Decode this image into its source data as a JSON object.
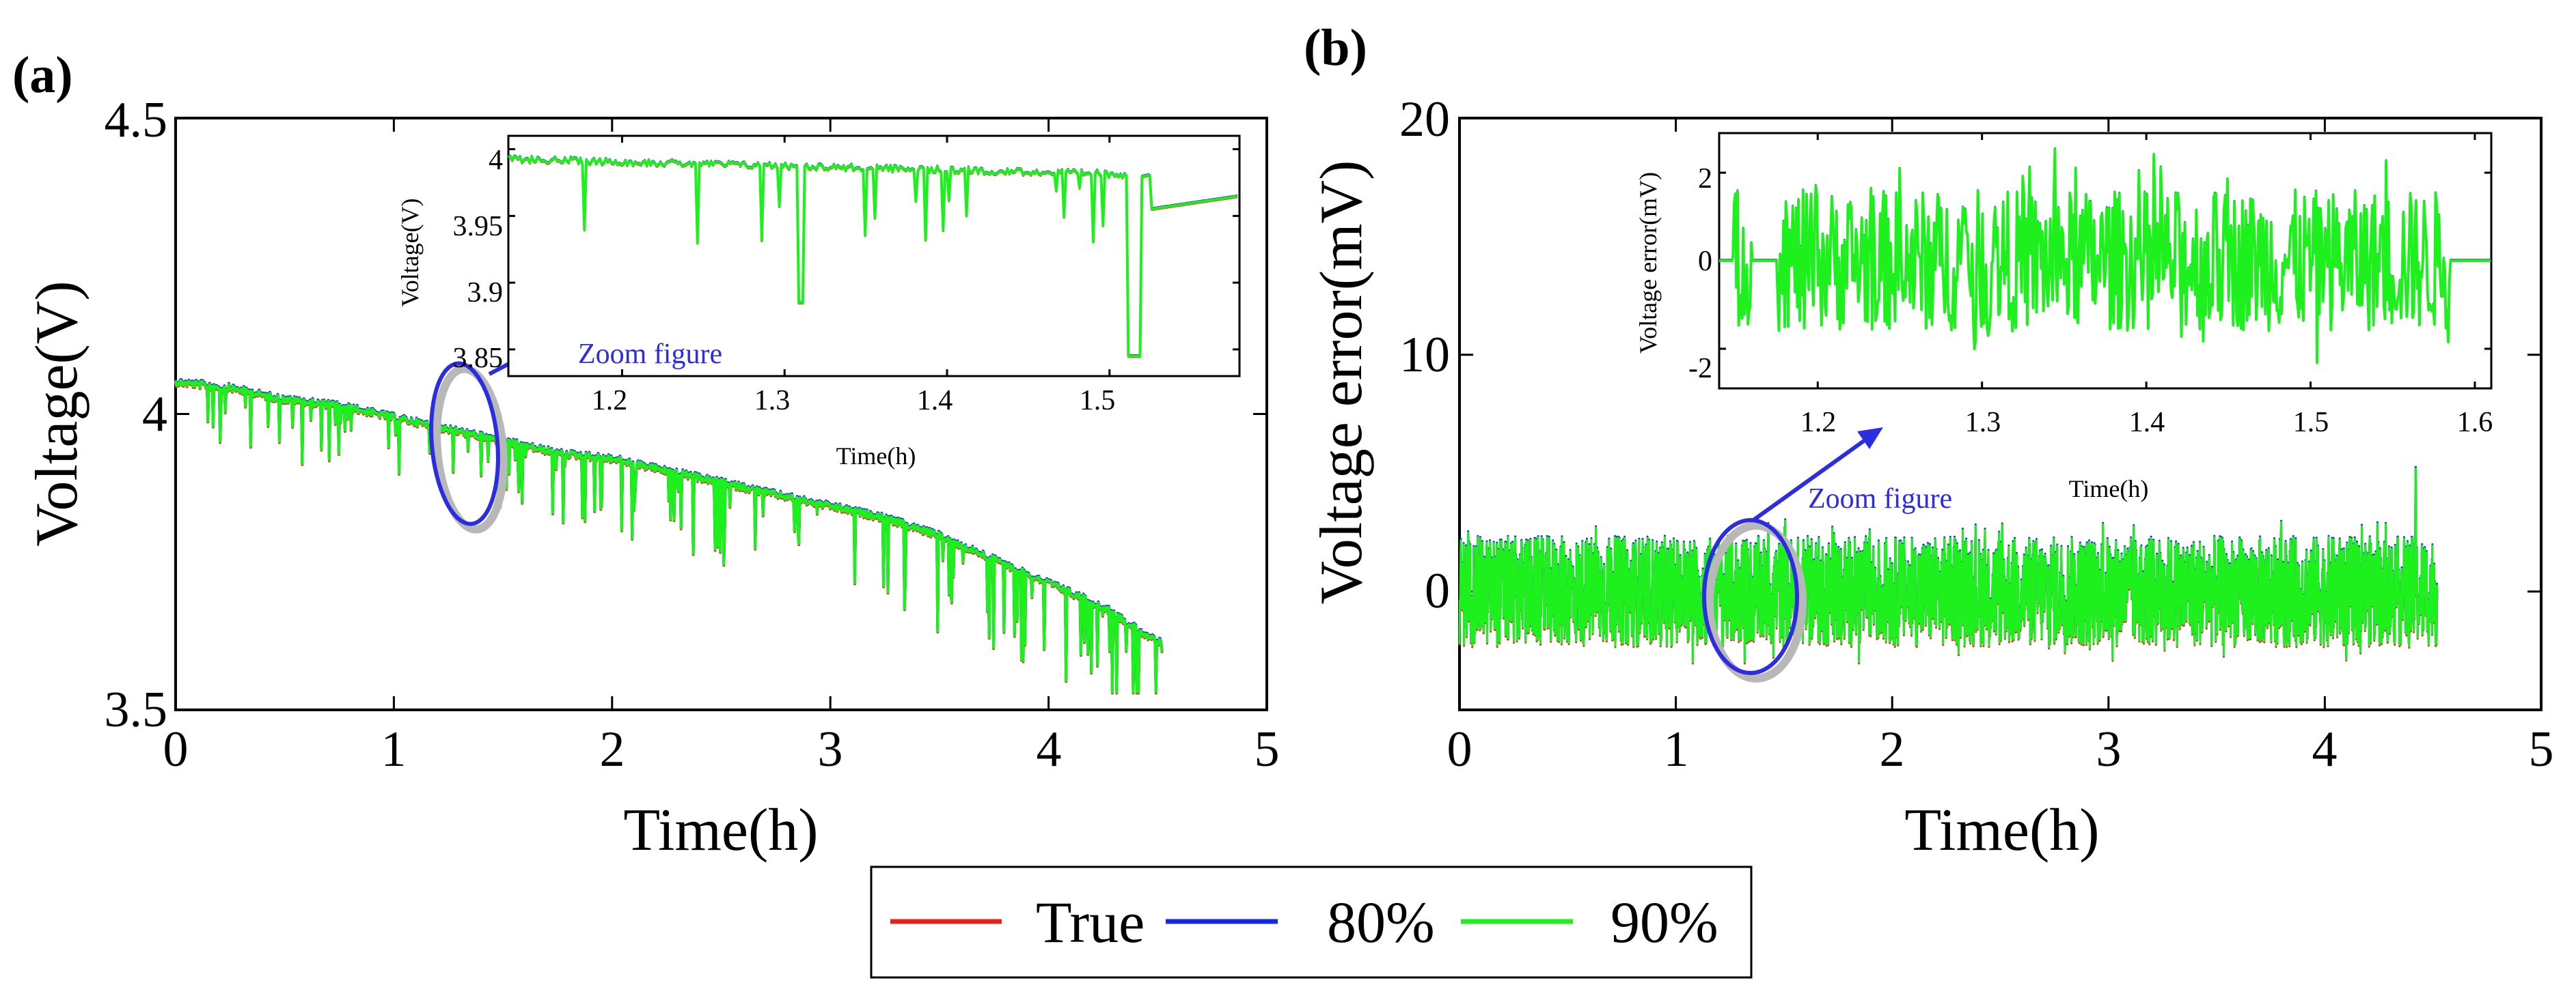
{
  "chart_data": [
    {
      "panel": "(a)",
      "type": "line",
      "xlabel": "Time(h)",
      "ylabel": "Voltage(V)",
      "xlim": [
        0,
        5
      ],
      "ylim": [
        3.5,
        4.5
      ],
      "xticks": [
        "0",
        "1",
        "2",
        "3",
        "4",
        "5"
      ],
      "yticks": [
        "3.5",
        "4",
        "4.5"
      ],
      "series": [
        {
          "name": "True",
          "color": "#e8221b",
          "x": [
            0,
            0.25,
            0.5,
            0.75,
            1.0,
            1.25,
            1.5,
            1.75,
            2.0,
            2.25,
            2.5,
            2.75,
            3.0,
            3.25,
            3.5,
            3.75,
            4.0,
            4.25,
            4.5
          ],
          "y": [
            4.06,
            4.05,
            4.03,
            4.02,
            4.0,
            3.98,
            3.96,
            3.94,
            3.93,
            3.91,
            3.89,
            3.87,
            3.85,
            3.83,
            3.8,
            3.76,
            3.72,
            3.68,
            3.62
          ]
        },
        {
          "name": "80%",
          "color": "#1428e6",
          "x": [
            0,
            0.25,
            0.5,
            0.75,
            1.0,
            1.25,
            1.5,
            1.75,
            2.0,
            2.25,
            2.5,
            2.75,
            3.0,
            3.25,
            3.5,
            3.75,
            4.0,
            4.25,
            4.5
          ],
          "y": [
            4.06,
            4.05,
            4.03,
            4.02,
            4.0,
            3.98,
            3.96,
            3.94,
            3.93,
            3.91,
            3.89,
            3.87,
            3.85,
            3.83,
            3.8,
            3.76,
            3.72,
            3.68,
            3.62
          ]
        },
        {
          "name": "90%",
          "color": "#1ef01e",
          "x": [
            0,
            0.25,
            0.5,
            0.75,
            1.0,
            1.25,
            1.5,
            1.75,
            2.0,
            2.25,
            2.5,
            2.75,
            3.0,
            3.25,
            3.5,
            3.75,
            4.0,
            4.25,
            4.5
          ],
          "y": [
            4.06,
            4.05,
            4.03,
            4.02,
            4.0,
            3.98,
            3.96,
            3.94,
            3.93,
            3.91,
            3.89,
            3.87,
            3.85,
            3.83,
            3.8,
            3.76,
            3.72,
            3.68,
            3.62
          ]
        }
      ],
      "dips_min_voltage": 3.53,
      "inset": {
        "xlabel": "Time(h)",
        "ylabel": "Voltage(V)",
        "xlim": [
          1.13,
          1.58
        ],
        "ylim": [
          3.83,
          4.01
        ],
        "xticks": [
          "1.2",
          "1.3",
          "1.4",
          "1.5"
        ],
        "yticks": [
          "3.85",
          "3.9",
          "3.95",
          "4"
        ],
        "zoom_label": "Zoom figure",
        "zoom_region_x": [
          1.15,
          1.55
        ],
        "min_point": {
          "x": 1.515,
          "y": 3.845
        }
      }
    },
    {
      "panel": "(b)",
      "type": "line",
      "xlabel": "Time(h)",
      "ylabel": "Voltage error(mV)",
      "xlim": [
        0,
        5
      ],
      "ylim": [
        -5,
        20
      ],
      "xticks": [
        "0",
        "1",
        "2",
        "3",
        "4",
        "5"
      ],
      "yticks": [
        "0",
        "10",
        "20"
      ],
      "series": [
        {
          "name": "True",
          "color": "#e8221b",
          "x": [
            0,
            4.5
          ],
          "y": [
            0,
            0
          ]
        },
        {
          "name": "80%",
          "color": "#1428e6",
          "x": [
            0,
            4.5
          ],
          "y": [
            0,
            0
          ]
        },
        {
          "name": "90%",
          "color": "#1ef01e",
          "x": [
            0,
            4.5
          ],
          "y": [
            0,
            0
          ]
        }
      ],
      "noise_band_mV": [
        -3,
        3
      ],
      "max_spike": {
        "x": 4.42,
        "y": 5.2
      },
      "inset": {
        "xlabel": "Time(h)",
        "ylabel": "Voltage error(mV)",
        "xlim": [
          1.14,
          1.61
        ],
        "ylim": [
          -2.9,
          2.9
        ],
        "xticks": [
          "1.2",
          "1.3",
          "1.4",
          "1.5",
          "1.6"
        ],
        "yticks": [
          "-2",
          "0",
          "2"
        ],
        "zoom_label": "Zoom figure",
        "zoom_region_x": [
          1.15,
          1.6
        ]
      }
    }
  ],
  "legend": {
    "entries": [
      {
        "label": "True",
        "color": "#e8221b"
      },
      {
        "label": "80%",
        "color": "#1428e6"
      },
      {
        "label": "90%",
        "color": "#1ef01e"
      }
    ]
  },
  "annotation_color": "#2d2de0"
}
